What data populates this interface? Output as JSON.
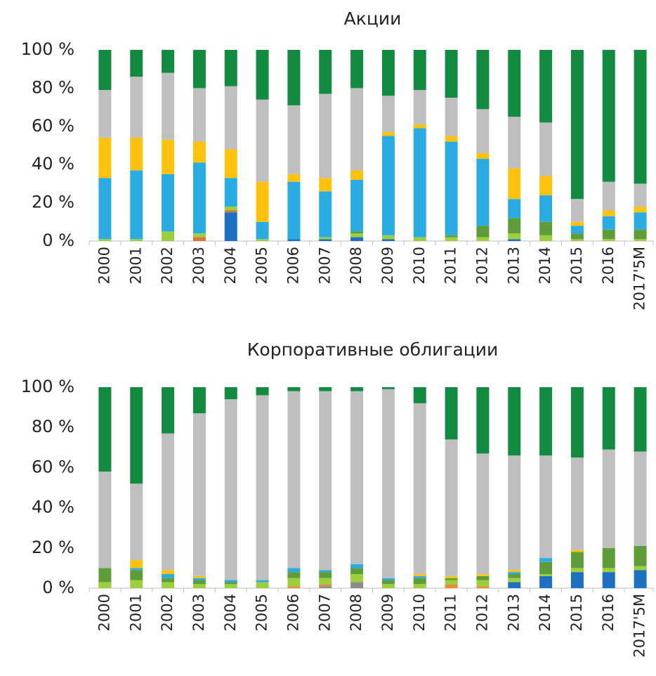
{
  "chart_data": [
    {
      "type": "stacked_bar",
      "title": "Акции",
      "categories": [
        "2000",
        "2001",
        "2002",
        "2003",
        "2004",
        "2005",
        "2006",
        "2007",
        "2008",
        "2009",
        "2010",
        "2011",
        "2012",
        "2013",
        "2014",
        "2015",
        "2016",
        "2017'5M"
      ],
      "ylim": [
        0,
        100
      ],
      "yticks": [
        {
          "value": 0,
          "label": "0 %"
        },
        {
          "value": 20,
          "label": "20 %"
        },
        {
          "value": 40,
          "label": "40 %"
        },
        {
          "value": 60,
          "label": "60 %"
        },
        {
          "value": 80,
          "label": "80 %"
        },
        {
          "value": 100,
          "label": "100 %"
        }
      ],
      "series": [
        {
          "color": "#1f6fc0",
          "values": [
            0,
            0,
            0,
            0,
            15,
            0,
            1,
            1,
            2,
            1,
            0,
            0,
            0,
            1,
            0,
            0,
            0,
            0
          ]
        },
        {
          "color": "#e0703a",
          "values": [
            0,
            0,
            0,
            2,
            1,
            0,
            0,
            0,
            0,
            0,
            0,
            0,
            0,
            0,
            0,
            0,
            0,
            0
          ]
        },
        {
          "color": "#9bcf3e",
          "values": [
            1,
            1,
            5,
            2,
            2,
            1,
            0,
            1,
            2,
            2,
            2,
            2,
            2,
            3,
            3,
            1,
            1,
            1
          ]
        },
        {
          "color": "#5f9d3a",
          "values": [
            0,
            0,
            0,
            0,
            0,
            0,
            0,
            0,
            1,
            0,
            0,
            1,
            6,
            8,
            7,
            3,
            5,
            5
          ]
        },
        {
          "color": "#2aace2",
          "values": [
            32,
            36,
            30,
            37,
            15,
            9,
            30,
            24,
            27,
            52,
            57,
            49,
            35,
            10,
            14,
            4,
            7,
            9
          ]
        },
        {
          "color": "#ffc30f",
          "values": [
            21,
            17,
            18,
            11,
            15,
            21,
            4,
            7,
            5,
            2,
            2,
            3,
            3,
            16,
            10,
            2,
            3,
            3
          ]
        },
        {
          "color": "#bfbfbf",
          "values": [
            25,
            32,
            35,
            28,
            33,
            43,
            36,
            44,
            43,
            19,
            18,
            20,
            23,
            27,
            28,
            12,
            15,
            12
          ]
        },
        {
          "color": "#128a40",
          "values": [
            21,
            14,
            12,
            20,
            19,
            26,
            29,
            23,
            20,
            24,
            21,
            25,
            31,
            35,
            38,
            78,
            69,
            70
          ]
        }
      ]
    },
    {
      "type": "stacked_bar",
      "title": "Корпоративные облигации",
      "categories": [
        "2000",
        "2001",
        "2002",
        "2003",
        "2004",
        "2005",
        "2006",
        "2007",
        "2008",
        "2009",
        "2010",
        "2011",
        "2012",
        "2013",
        "2014",
        "2015",
        "2016",
        "2017'5M"
      ],
      "ylim": [
        0,
        100
      ],
      "yticks": [
        {
          "value": 0,
          "label": "0 %"
        },
        {
          "value": 20,
          "label": "20 %"
        },
        {
          "value": 40,
          "label": "40 %"
        },
        {
          "value": 60,
          "label": "60 %"
        },
        {
          "value": 80,
          "label": "80 %"
        },
        {
          "value": 100,
          "label": "100 %"
        }
      ],
      "series": [
        {
          "color": "#1f6fc0",
          "values": [
            0,
            0,
            0,
            0,
            0,
            0,
            0,
            0,
            0,
            0,
            0,
            0,
            0,
            3,
            6,
            8,
            8,
            9
          ]
        },
        {
          "color": "#8c8c8c",
          "values": [
            0,
            0,
            0,
            0,
            0,
            0,
            0,
            1,
            3,
            0,
            0,
            0,
            0,
            0,
            0,
            0,
            0,
            0
          ]
        },
        {
          "color": "#e0903a",
          "values": [
            0,
            0,
            0,
            0,
            0,
            0,
            1,
            1,
            0,
            0,
            0,
            2,
            1,
            0,
            0,
            0,
            0,
            0
          ]
        },
        {
          "color": "#9bcf3e",
          "values": [
            3,
            4,
            3,
            2,
            2,
            3,
            4,
            3,
            4,
            2,
            2,
            2,
            3,
            2,
            1,
            2,
            2,
            2
          ]
        },
        {
          "color": "#5f9d3a",
          "values": [
            7,
            5,
            2,
            2,
            1,
            0,
            3,
            3,
            3,
            2,
            3,
            1,
            2,
            2,
            6,
            8,
            10,
            10
          ]
        },
        {
          "color": "#2aace2",
          "values": [
            0,
            1,
            2,
            1,
            1,
            1,
            2,
            1,
            2,
            1,
            1,
            0,
            0,
            1,
            2,
            0,
            0,
            0
          ]
        },
        {
          "color": "#ffc30f",
          "values": [
            0,
            4,
            2,
            1,
            0,
            0,
            0,
            0,
            0,
            0,
            1,
            1,
            1,
            1,
            0,
            1,
            0,
            0
          ]
        },
        {
          "color": "#bfbfbf",
          "values": [
            48,
            38,
            68,
            81,
            90,
            92,
            88,
            89,
            86,
            94,
            85,
            68,
            60,
            57,
            51,
            46,
            49,
            47
          ]
        },
        {
          "color": "#128a40",
          "values": [
            42,
            48,
            23,
            13,
            6,
            4,
            2,
            2,
            2,
            1,
            8,
            26,
            33,
            34,
            34,
            35,
            31,
            32
          ]
        }
      ]
    }
  ]
}
